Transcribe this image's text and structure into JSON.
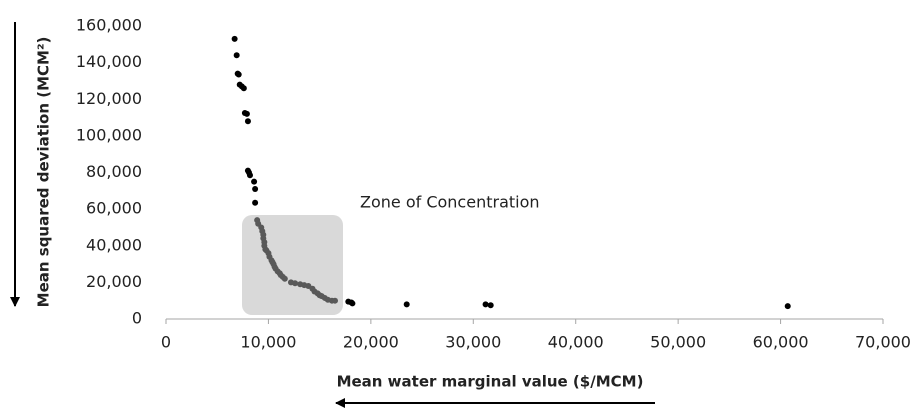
{
  "chart_data": {
    "type": "scatter",
    "x_label": "Mean water marginal value ($/MCM)",
    "y_label": "Mean squared deviation (MCM²)",
    "annotation": "Zone of Concentration",
    "xlim": [
      0,
      70000
    ],
    "xticks": [
      0,
      {
        "value": 10000,
        "label": "10,000"
      },
      {
        "value": 20000,
        "label": "20,000"
      },
      {
        "value": 30000,
        "label": "30,000"
      },
      {
        "value": 40000,
        "label": "40,000"
      },
      {
        "value": 50000,
        "label": "50,000"
      },
      {
        "value": 60000,
        "label": "60,000"
      },
      {
        "value": 70000,
        "label": "70,000"
      }
    ],
    "ylim": [
      0,
      160000
    ],
    "yticks": [
      0,
      {
        "value": 20000,
        "label": "20,000"
      },
      {
        "value": 40000,
        "label": "40,000"
      },
      {
        "value": 60000,
        "label": "60,000"
      },
      {
        "value": 80000,
        "label": "80,000"
      },
      {
        "value": 100000,
        "label": "100,000"
      },
      {
        "value": 120000,
        "label": "120,000"
      },
      {
        "value": 140000,
        "label": "140,000"
      },
      {
        "value": 160000,
        "label": "160,000"
      }
    ],
    "grid": false,
    "series": [
      {
        "color": "#000000",
        "x": [
          6700,
          6900,
          7000,
          7100,
          7200,
          7400,
          7600,
          7700,
          7900,
          8000,
          8000,
          8100,
          8200,
          8600,
          8700,
          8700,
          17800,
          18100,
          18200,
          23500,
          31200,
          31700,
          60700
        ],
        "values": [
          153000,
          144000,
          134000,
          133500,
          128000,
          127000,
          126000,
          112500,
          112000,
          108000,
          81000,
          80000,
          78500,
          75000,
          71000,
          63500,
          9500,
          9000,
          8500,
          8000,
          8000,
          7500,
          7000
        ]
      },
      {
        "color": "#595959",
        "x": [
          8900,
          9000,
          9300,
          9400,
          9500,
          9500,
          9600,
          9600,
          9700,
          9800,
          10000,
          10100,
          10300,
          10400,
          10500,
          10600,
          10700,
          10900,
          11100,
          11200,
          11400,
          11600,
          12200,
          12600,
          13100,
          13500,
          13900,
          14300,
          14500,
          14800,
          15000,
          15200,
          15500,
          15800,
          16200,
          16500
        ],
        "values": [
          54000,
          52000,
          50000,
          48000,
          46000,
          44000,
          42000,
          40000,
          38000,
          37500,
          36000,
          34000,
          32000,
          31000,
          30000,
          28500,
          27500,
          26000,
          25000,
          24000,
          23000,
          22000,
          20000,
          19500,
          19000,
          18500,
          18000,
          16500,
          15000,
          14000,
          13000,
          12500,
          11500,
          10500,
          10000,
          10000
        ]
      }
    ]
  }
}
